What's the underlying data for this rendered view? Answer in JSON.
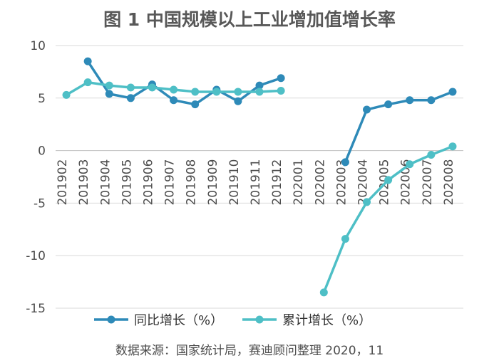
{
  "chart_data": {
    "type": "line",
    "title": "图 1 中国规模以上工业增加值增长率",
    "categories": [
      "201902",
      "201903",
      "201904",
      "201905",
      "201906",
      "201907",
      "201908",
      "201909",
      "201910",
      "201911",
      "201912",
      "202001",
      "202002",
      "202003",
      "202004",
      "202005",
      "202006",
      "202007",
      "202008"
    ],
    "yticks": [
      "10",
      "5",
      "0",
      "-5",
      "-10",
      "-15"
    ],
    "ylim": [
      -15,
      10
    ],
    "grid": true,
    "legend_position": "bottom",
    "series": [
      {
        "name": "同比增长（%）",
        "color": "#2e8ab8",
        "values": [
          null,
          8.5,
          5.4,
          5.0,
          6.3,
          4.8,
          4.4,
          5.8,
          4.7,
          6.2,
          6.9,
          null,
          null,
          -1.1,
          3.9,
          4.4,
          4.8,
          4.8,
          5.6
        ]
      },
      {
        "name": "累计增长（%）",
        "color": "#4ebfc6",
        "values": [
          5.3,
          6.5,
          6.2,
          6.0,
          6.0,
          5.8,
          5.6,
          5.6,
          5.6,
          5.6,
          5.7,
          null,
          -13.5,
          -8.4,
          -4.9,
          -2.8,
          -1.3,
          -0.4,
          0.4
        ]
      }
    ],
    "source": "数据来源：国家统计局，赛迪顾问整理 2020，11"
  }
}
